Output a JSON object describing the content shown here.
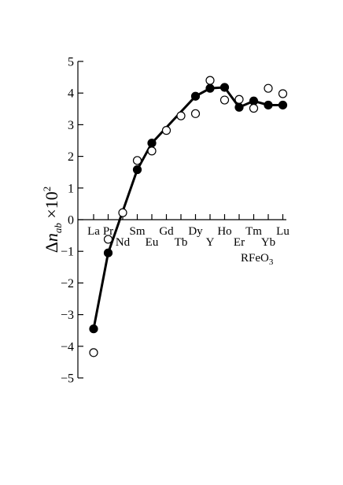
{
  "chart_data": {
    "type": "line",
    "ylabel": "Δn_ab ×10²",
    "ylabel_parts": {
      "delta": "Δ",
      "n": "n",
      "sub": "ab",
      "times": " ×10",
      "sup": "2"
    },
    "xlabel": "RFeO3",
    "xlabel_parts": {
      "main": "RFeO",
      "sub": "3"
    },
    "ylim": [
      -5,
      5
    ],
    "yticks": [
      -5,
      -4,
      -3,
      -2,
      -1,
      0,
      1,
      2,
      3,
      4,
      5
    ],
    "ytick_labels": [
      "−5",
      "−4",
      "−3",
      "−2",
      "−1",
      "0",
      "1",
      "2",
      "3",
      "4",
      "5"
    ],
    "grid": false,
    "categories": [
      "La",
      "Pr",
      "Nd",
      "Sm",
      "Eu",
      "Gd",
      "Tb",
      "Dy",
      "Y",
      "Ho",
      "Er",
      "Tm",
      "Yb",
      "Lu"
    ],
    "category_label_row": [
      "upper",
      "upper",
      "lower",
      "upper",
      "lower",
      "upper",
      "lower",
      "upper",
      "lower",
      "upper",
      "lower",
      "upper",
      "lower",
      "upper"
    ],
    "category_mark_x": [
      1,
      2,
      3,
      4,
      5,
      6,
      7,
      8,
      9,
      10,
      11,
      12,
      13,
      14
    ],
    "series": [
      {
        "marker": "filled-circle",
        "line": true,
        "x": [
          1,
          2,
          4,
          5,
          8,
          9,
          10,
          11,
          12,
          13,
          14
        ],
        "values": [
          -3.45,
          -1.05,
          1.58,
          2.42,
          3.9,
          4.15,
          4.18,
          3.55,
          3.75,
          3.62,
          3.62
        ]
      },
      {
        "marker": "open-circle",
        "line": false,
        "x": [
          1,
          2,
          3,
          4,
          5,
          6,
          7,
          8,
          9,
          10,
          11,
          12,
          13,
          14
        ],
        "values": [
          -4.2,
          -0.62,
          0.22,
          1.87,
          2.17,
          2.82,
          3.28,
          3.35,
          4.4,
          3.78,
          3.8,
          3.52,
          4.15,
          3.98
        ]
      }
    ]
  }
}
